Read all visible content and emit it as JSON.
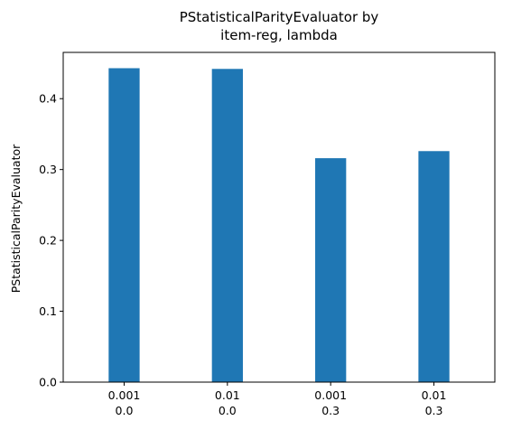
{
  "chart_data": {
    "type": "bar",
    "title_lines": [
      "PStatisticalParityEvaluator by",
      "item-reg, lambda"
    ],
    "xlabel": "",
    "ylabel": "PStatisticalParityEvaluator",
    "categories": [
      {
        "line1": "0.001",
        "line2": "0.0"
      },
      {
        "line1": "0.01",
        "line2": "0.0"
      },
      {
        "line1": "0.001",
        "line2": "0.3"
      },
      {
        "line1": "0.01",
        "line2": "0.3"
      }
    ],
    "values": [
      0.443,
      0.442,
      0.316,
      0.326
    ],
    "ylim": [
      0,
      0.4653
    ],
    "yticks": [
      0.0,
      0.1,
      0.2,
      0.3,
      0.4
    ],
    "ytick_labels": [
      "0.0",
      "0.1",
      "0.2",
      "0.3",
      "0.4"
    ],
    "bar_color": "#1f77b4",
    "grid": false,
    "legend": "none"
  }
}
